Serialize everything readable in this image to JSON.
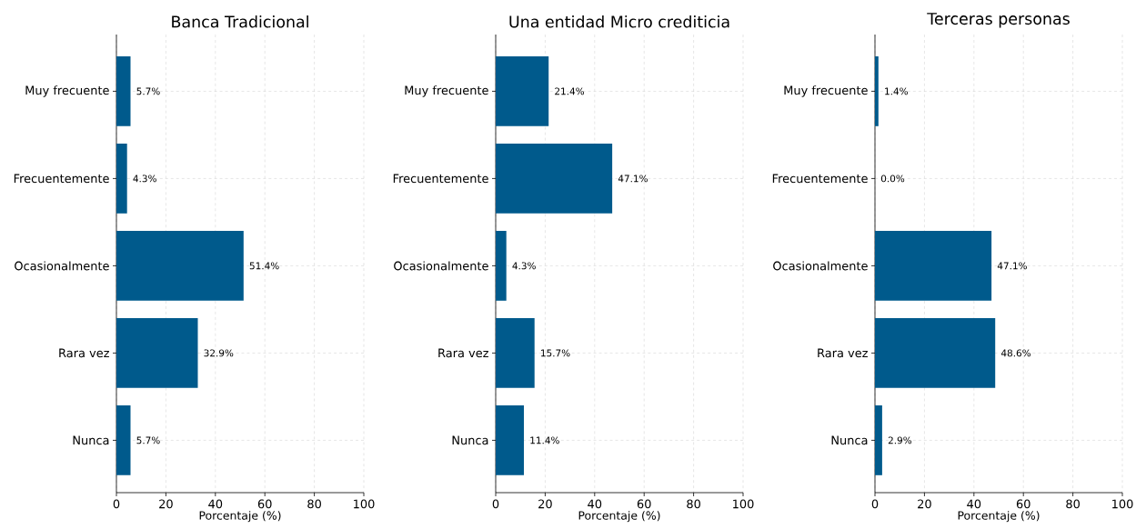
{
  "chart_data": [
    {
      "type": "bar",
      "orientation": "horizontal",
      "title": "Banca Tradicional",
      "xlabel": "Porcentaje (%)",
      "categories": [
        "Muy frecuente",
        "Frecuentemente",
        "Ocasionalmente",
        "Rara vez",
        "Nunca"
      ],
      "values": [
        5.7,
        4.3,
        51.4,
        32.9,
        5.7
      ],
      "value_labels": [
        "5.7%",
        "4.3%",
        "51.4%",
        "32.9%",
        "5.7%"
      ],
      "color": "#005a8c",
      "xlim": [
        0,
        100
      ],
      "xticks": [
        0,
        20,
        40,
        60,
        80,
        100
      ],
      "grid": true
    },
    {
      "type": "bar",
      "orientation": "horizontal",
      "title": "Una entidad Micro crediticia",
      "xlabel": "Porcentaje (%)",
      "categories": [
        "Muy frecuente",
        "Frecuentemente",
        "Ocasionalmente",
        "Rara vez",
        "Nunca"
      ],
      "values": [
        21.4,
        47.1,
        4.3,
        15.7,
        11.4
      ],
      "value_labels": [
        "21.4%",
        "47.1%",
        "4.3%",
        "15.7%",
        "11.4%"
      ],
      "color": "#005a8c",
      "xlim": [
        0,
        100
      ],
      "xticks": [
        0,
        20,
        40,
        60,
        80,
        100
      ],
      "grid": true
    },
    {
      "type": "bar",
      "orientation": "horizontal",
      "title": "Terceras personas",
      "xlabel": "Porcentaje (%)",
      "categories": [
        "Muy frecuente",
        "Frecuentemente",
        "Ocasionalmente",
        "Rara vez",
        "Nunca"
      ],
      "values": [
        1.4,
        0.0,
        47.1,
        48.6,
        2.9
      ],
      "value_labels": [
        "1.4%",
        "0.0%",
        "47.1%",
        "48.6%",
        "2.9%"
      ],
      "color": "#005a8c",
      "xlim": [
        0,
        100
      ],
      "xticks": [
        0,
        20,
        40,
        60,
        80,
        100
      ],
      "grid": true
    }
  ]
}
